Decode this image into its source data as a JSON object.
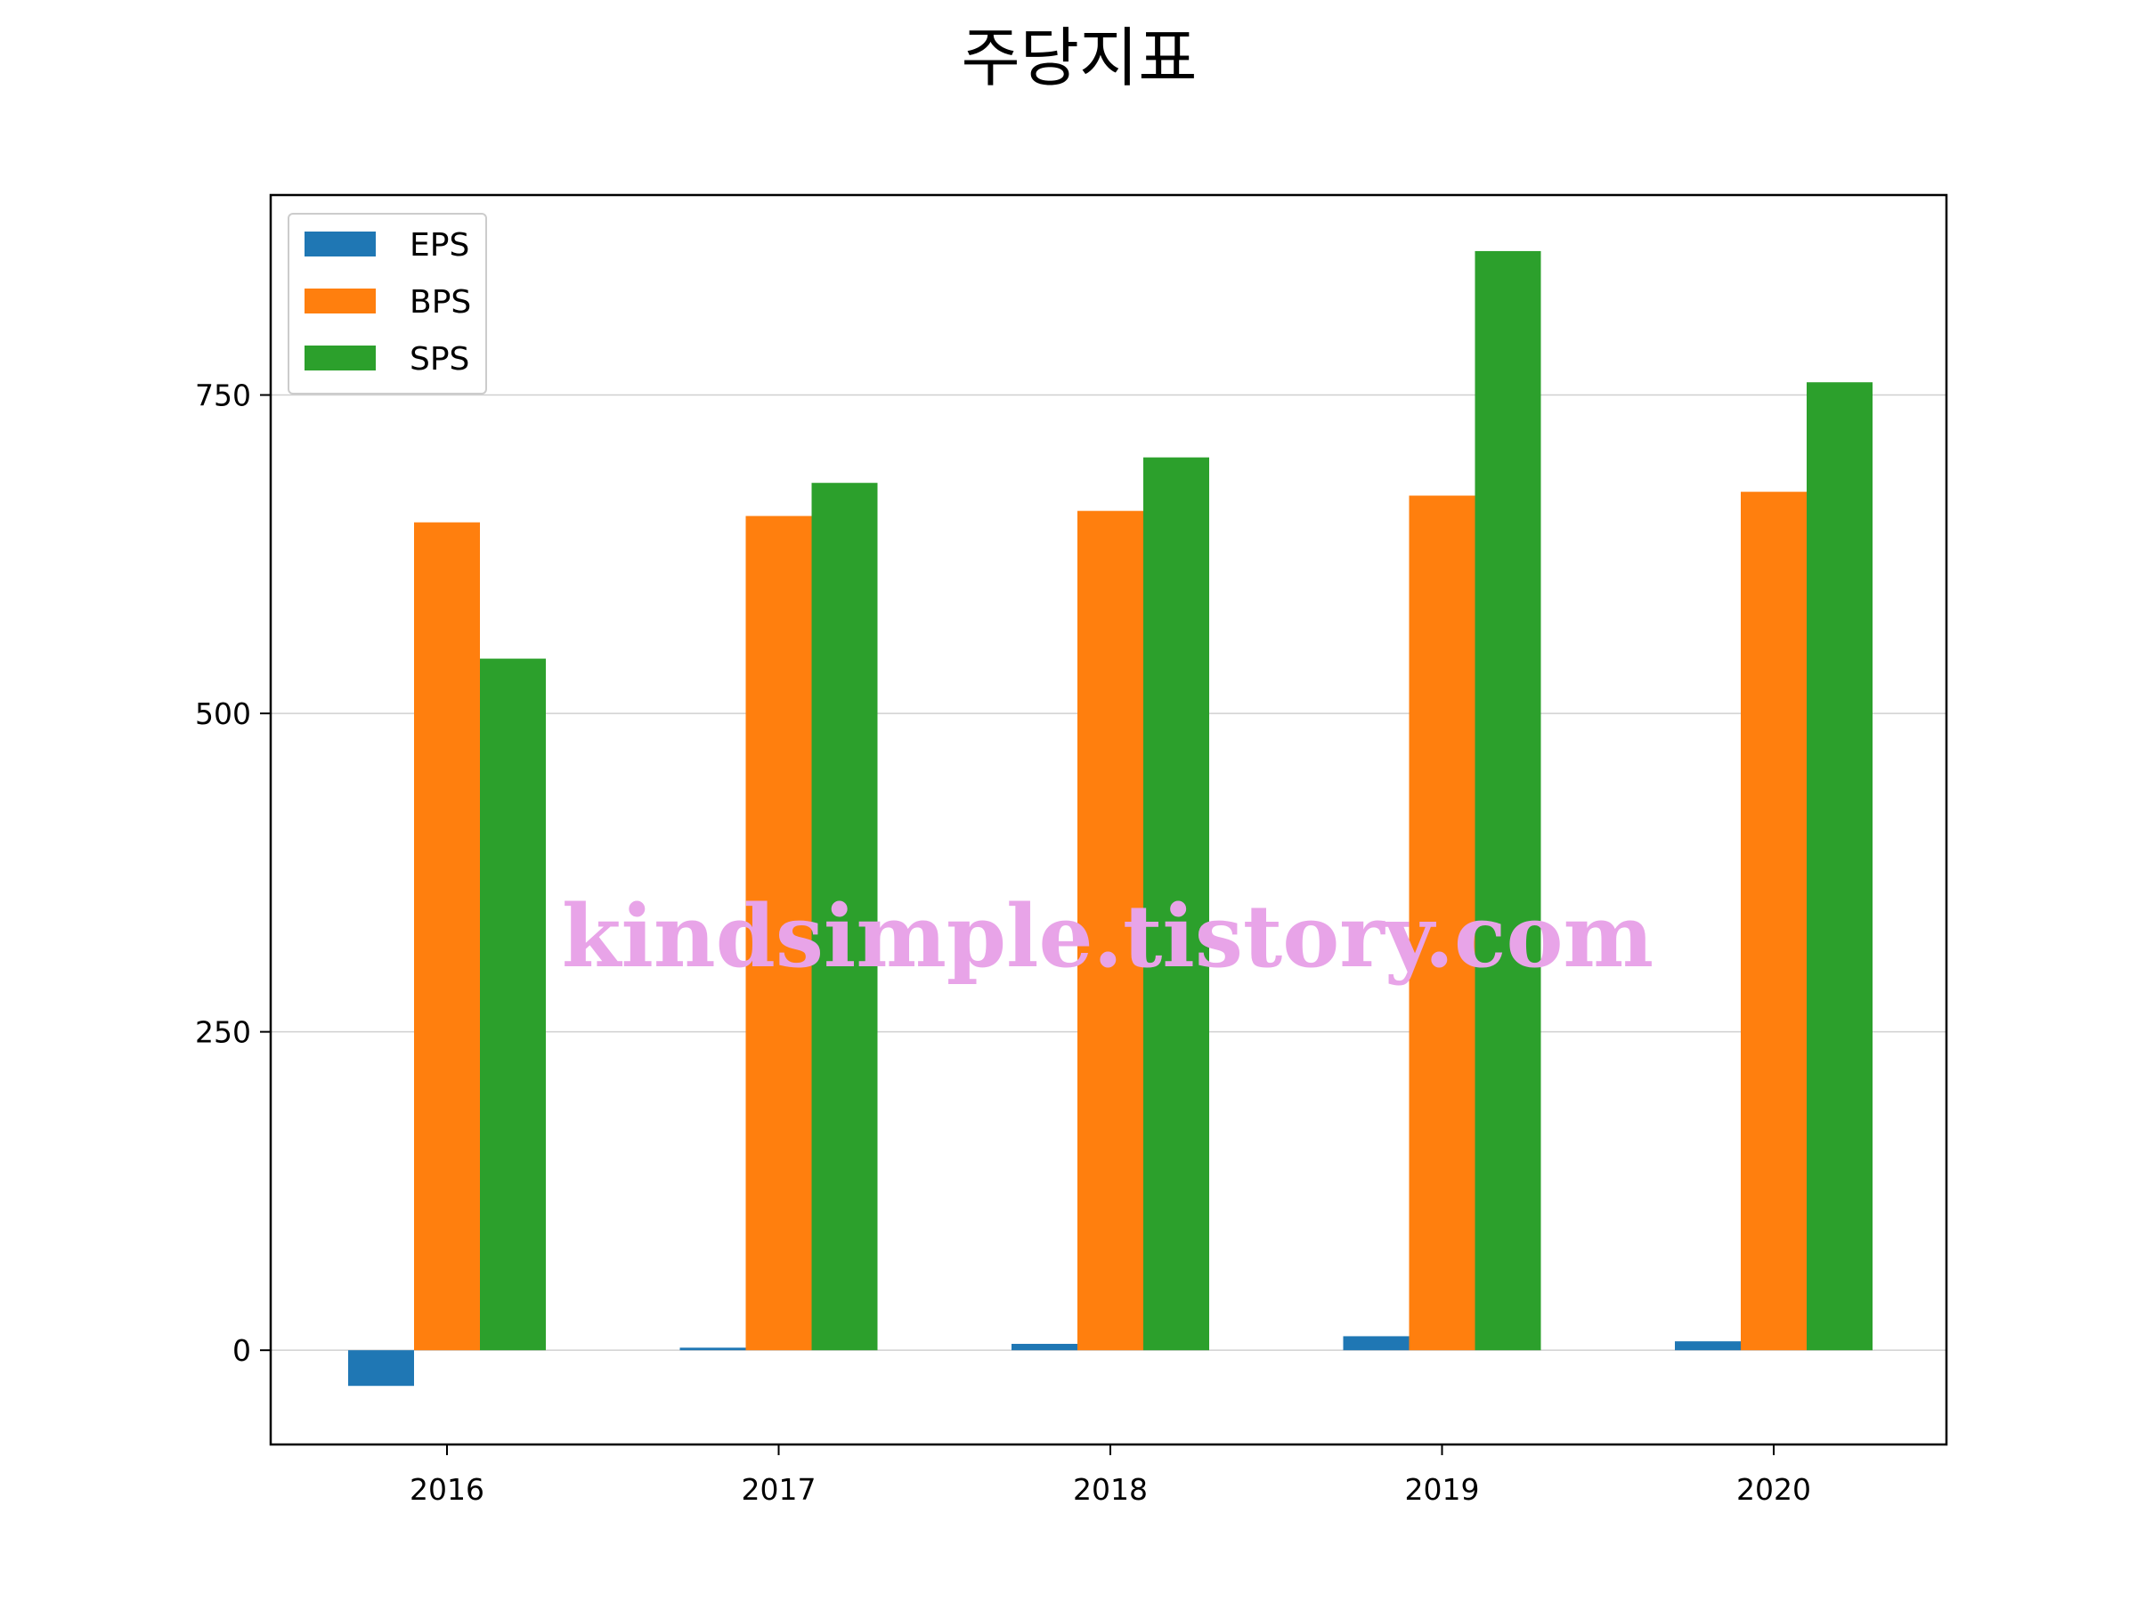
{
  "chart_data": {
    "type": "bar",
    "title": "주당지표",
    "xlabel": "",
    "ylabel": "",
    "categories": [
      "2016",
      "2017",
      "2018",
      "2019",
      "2020"
    ],
    "series": [
      {
        "name": "EPS",
        "color": "#1f77b4",
        "values": [
          -28,
          2,
          5,
          11,
          7
        ]
      },
      {
        "name": "BPS",
        "color": "#ff7f0e",
        "values": [
          650,
          655,
          659,
          671,
          674
        ]
      },
      {
        "name": "SPS",
        "color": "#2ca02c",
        "values": [
          543,
          681,
          701,
          863,
          760
        ]
      }
    ],
    "ylim": [
      -74,
      907
    ],
    "yticks": [
      "0",
      "250",
      "500",
      "750"
    ],
    "grid": "horizontal",
    "legend_position": "top-left"
  },
  "watermark": "kindsimple.tistory.com"
}
